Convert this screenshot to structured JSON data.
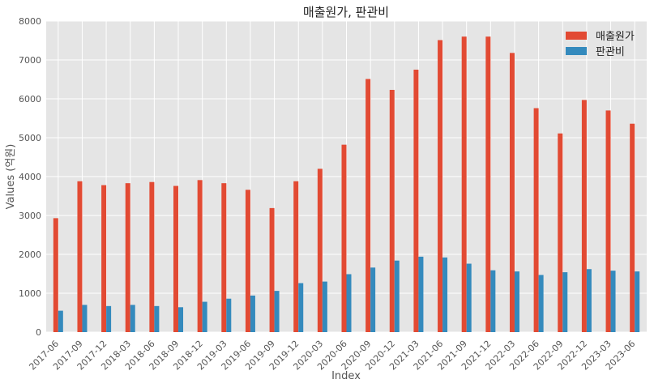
{
  "chart_data": {
    "type": "bar",
    "title": "매출원가, 판관비",
    "xlabel": "Index",
    "ylabel": "Values (억원)",
    "ylim": [
      0,
      8000
    ],
    "yticks": [
      0,
      1000,
      2000,
      3000,
      4000,
      5000,
      6000,
      7000,
      8000
    ],
    "grid": true,
    "legend_position": "top-right",
    "categories": [
      "2017-06",
      "2017-09",
      "2017-12",
      "2018-03",
      "2018-06",
      "2018-09",
      "2018-12",
      "2019-03",
      "2019-06",
      "2019-09",
      "2019-12",
      "2020-03",
      "2020-06",
      "2020-09",
      "2020-12",
      "2021-03",
      "2021-06",
      "2021-09",
      "2021-12",
      "2022-03",
      "2022-06",
      "2022-09",
      "2022-12",
      "2023-03",
      "2023-06"
    ],
    "series": [
      {
        "name": "매출원가",
        "color": "#E24A33",
        "values": [
          2930,
          3880,
          3780,
          3830,
          3860,
          3760,
          3910,
          3830,
          3660,
          3190,
          3880,
          4200,
          4820,
          6510,
          6230,
          6750,
          7510,
          7600,
          7600,
          7180,
          5760,
          5110,
          5970,
          5700,
          5360
        ]
      },
      {
        "name": "판관비",
        "color": "#348ABD",
        "values": [
          550,
          700,
          670,
          700,
          670,
          640,
          780,
          860,
          940,
          1060,
          1260,
          1300,
          1490,
          1660,
          1840,
          1940,
          1920,
          1760,
          1590,
          1560,
          1470,
          1540,
          1620,
          1580,
          1560
        ]
      }
    ]
  }
}
